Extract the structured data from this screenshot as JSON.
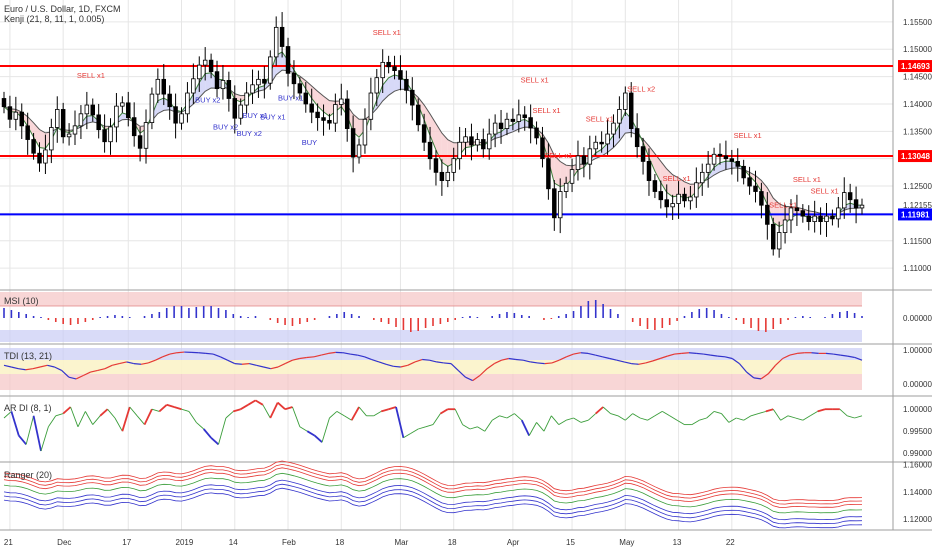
{
  "header": {
    "title": "Euro / U.S. Dollar, 1D, FXCM",
    "indicator": "Kenji (21, 8, 11, 1, 0.005)"
  },
  "colors": {
    "up_candle": "#ffffff",
    "down_candle": "#000000",
    "resistance": "#ff0000",
    "support": "#0000ff",
    "buy_label": "#3333cc",
    "sell_label": "#e53935",
    "grid": "#e6e6e6"
  },
  "chart_data": [
    {
      "type": "candlestick",
      "name": "price",
      "title": "Euro / U.S. Dollar, 1D, FXCM",
      "ylim": [
        1.106,
        1.159
      ],
      "y_ticks": [
        "1.15500",
        "1.15000",
        "1.14500",
        "1.14000",
        "1.13500",
        "1.13000",
        "1.12500",
        "1.12000",
        "1.11500",
        "1.11000"
      ],
      "x_ticks": [
        "21",
        "Dec",
        "17",
        "2019",
        "14",
        "Feb",
        "18",
        "Mar",
        "18",
        "Apr",
        "15",
        "May",
        "13",
        "22"
      ],
      "levels": [
        {
          "label": "1.14693",
          "value": 1.14693,
          "color": "#ff0000"
        },
        {
          "label": "1.13048",
          "value": 1.13048,
          "color": "#ff0000"
        },
        {
          "label": "1.11981",
          "value": 1.11981,
          "color": "#0000ff"
        }
      ],
      "last_value_label": "1.12155",
      "close": [
        1.1395,
        1.1372,
        1.1385,
        1.136,
        1.1335,
        1.131,
        1.1292,
        1.1316,
        1.1357,
        1.139,
        1.134,
        1.1345,
        1.136,
        1.1382,
        1.1398,
        1.138,
        1.1353,
        1.1331,
        1.1358,
        1.1396,
        1.1402,
        1.1375,
        1.1342,
        1.1319,
        1.1366,
        1.1418,
        1.1445,
        1.1418,
        1.1395,
        1.1365,
        1.1382,
        1.142,
        1.1446,
        1.1471,
        1.148,
        1.1459,
        1.1428,
        1.1443,
        1.141,
        1.1374,
        1.1398,
        1.142,
        1.1435,
        1.1445,
        1.1438,
        1.1486,
        1.154,
        1.1505,
        1.1456,
        1.1437,
        1.142,
        1.14,
        1.1385,
        1.1375,
        1.137,
        1.1365,
        1.1399,
        1.1409,
        1.1355,
        1.1303,
        1.1325,
        1.1372,
        1.142,
        1.1448,
        1.1476,
        1.1468,
        1.1461,
        1.1445,
        1.1425,
        1.1398,
        1.1362,
        1.133,
        1.13,
        1.1275,
        1.126,
        1.1275,
        1.13,
        1.133,
        1.134,
        1.1325,
        1.1335,
        1.1318,
        1.1345,
        1.1365,
        1.1355,
        1.1372,
        1.1368,
        1.138,
        1.1375,
        1.1356,
        1.1338,
        1.13,
        1.1245,
        1.1192,
        1.124,
        1.1255,
        1.128,
        1.1305,
        1.129,
        1.1318,
        1.133,
        1.1327,
        1.1345,
        1.1365,
        1.139,
        1.142,
        1.1355,
        1.1322,
        1.1295,
        1.126,
        1.124,
        1.1225,
        1.1212,
        1.1218,
        1.1235,
        1.1223,
        1.123,
        1.1256,
        1.1275,
        1.129,
        1.1308,
        1.1305,
        1.13,
        1.1295,
        1.1286,
        1.1265,
        1.125,
        1.124,
        1.1215,
        1.118,
        1.1135,
        1.1165,
        1.1188,
        1.121,
        1.1205,
        1.1195,
        1.1185,
        1.1195,
        1.1185,
        1.1195,
        1.119,
        1.121,
        1.1238,
        1.1225,
        1.121,
        1.1215
      ],
      "signals": [
        {
          "label": "SELL x1",
          "kind": "sell"
        },
        {
          "label": "BUY x2",
          "kind": "buy"
        },
        {
          "label": "BUY x2",
          "kind": "buy"
        },
        {
          "label": "BUY x1",
          "kind": "buy"
        },
        {
          "label": "BUY x2",
          "kind": "buy"
        },
        {
          "label": "BUY x1",
          "kind": "buy"
        },
        {
          "label": "BUY x1",
          "kind": "buy"
        },
        {
          "label": "BUY",
          "kind": "buy"
        },
        {
          "label": "SELL x1",
          "kind": "sell"
        },
        {
          "label": "SELL x1",
          "kind": "sell"
        },
        {
          "label": "SELL x1",
          "kind": "sell"
        },
        {
          "label": "SELL x1",
          "kind": "sell"
        },
        {
          "label": "SELL x1",
          "kind": "sell"
        },
        {
          "label": "SELL x2",
          "kind": "sell"
        },
        {
          "label": "SELL x1",
          "kind": "sell"
        },
        {
          "label": "SELL x1",
          "kind": "sell"
        },
        {
          "label": "SELL x1",
          "kind": "sell"
        },
        {
          "label": "SELL x1",
          "kind": "sell"
        },
        {
          "label": "SELL x1",
          "kind": "sell"
        }
      ]
    },
    {
      "type": "bar",
      "name": "msi",
      "title": "MSI (10)",
      "y_ticks": [
        "0.00000"
      ],
      "ylim": [
        -1,
        1
      ],
      "values": [
        0.5,
        0.4,
        0.3,
        0.2,
        0.1,
        0.05,
        -0.1,
        -0.2,
        -0.3,
        -0.35,
        -0.3,
        -0.2,
        -0.1,
        0.05,
        0.1,
        0.15,
        0.1,
        0.05,
        0.0,
        0.1,
        0.2,
        0.3,
        0.5,
        0.6,
        0.6,
        0.5,
        0.55,
        0.6,
        0.6,
        0.5,
        0.4,
        0.2,
        0.1,
        0.05,
        0.1,
        0.0,
        -0.1,
        -0.25,
        -0.35,
        -0.4,
        -0.3,
        -0.2,
        -0.1,
        0.0,
        0.1,
        0.2,
        0.3,
        0.2,
        0.1,
        0.0,
        -0.1,
        -0.2,
        -0.3,
        -0.45,
        -0.6,
        -0.7,
        -0.65,
        -0.5,
        -0.4,
        -0.3,
        -0.2,
        -0.1,
        0.05,
        0.1,
        0.05,
        0.0,
        0.1,
        0.2,
        0.3,
        0.25,
        0.15,
        0.1,
        0.0,
        -0.1,
        -0.05,
        0.1,
        0.2,
        0.35,
        0.6,
        0.85,
        0.9,
        0.7,
        0.45,
        0.2,
        0.0,
        -0.2,
        -0.4,
        -0.55,
        -0.6,
        -0.5,
        -0.35,
        -0.15,
        0.1,
        0.3,
        0.45,
        0.5,
        0.4,
        0.2,
        0.05,
        -0.1,
        -0.3,
        -0.5,
        -0.65,
        -0.7,
        -0.55,
        -0.3,
        -0.1,
        0.05,
        0.1,
        0.05,
        0.0,
        0.05,
        0.2,
        0.3,
        0.35,
        0.25,
        0.1
      ],
      "color_positive": "#3333cc",
      "color_negative": "#e53935"
    },
    {
      "type": "line",
      "name": "tdi",
      "title": "TDI (13, 21)",
      "y_ticks": [
        "1.00000",
        "0.00000"
      ],
      "ylim": [
        -0.1,
        1.1
      ],
      "values": [
        0.55,
        0.5,
        0.45,
        0.42,
        0.45,
        0.5,
        0.55,
        0.5,
        0.4,
        0.2,
        0.15,
        0.25,
        0.35,
        0.4,
        0.45,
        0.55,
        0.6,
        0.65,
        0.6,
        0.58,
        0.62,
        0.7,
        0.8,
        0.88,
        0.92,
        0.94,
        0.93,
        0.92,
        0.9,
        0.88,
        0.8,
        0.7,
        0.6,
        0.58,
        0.6,
        0.55,
        0.5,
        0.45,
        0.5,
        0.6,
        0.7,
        0.75,
        0.78,
        0.8,
        0.85,
        0.9,
        0.93,
        0.92,
        0.88,
        0.85,
        0.8,
        0.72,
        0.65,
        0.58,
        0.52,
        0.5,
        0.55,
        0.65,
        0.72,
        0.7,
        0.65,
        0.62,
        0.6,
        0.4,
        0.2,
        0.1,
        0.25,
        0.45,
        0.6,
        0.7,
        0.75,
        0.72,
        0.7,
        0.65,
        0.62,
        0.6,
        0.62,
        0.7,
        0.8,
        0.88,
        0.92,
        0.9,
        0.85,
        0.8,
        0.75,
        0.7,
        0.65,
        0.6,
        0.58,
        0.62,
        0.68,
        0.75,
        0.82,
        0.88,
        0.9,
        0.92,
        0.9,
        0.88,
        0.85,
        0.82,
        0.8,
        0.75,
        0.6,
        0.35,
        0.18,
        0.15,
        0.3,
        0.55,
        0.75,
        0.85,
        0.9,
        0.92,
        0.92,
        0.9,
        0.9,
        0.88,
        0.85,
        0.82,
        0.78,
        0.7
      ]
    },
    {
      "type": "line",
      "name": "ar_di",
      "title": "AR DI (8, 1)",
      "y_ticks": [
        "1.00000",
        "0.99500",
        "0.99000"
      ],
      "ylim": [
        0.988,
        1.003
      ],
      "values": [
        0.998,
        0.9995,
        0.994,
        0.992,
        0.9985,
        0.9905,
        0.996,
        0.9985,
        0.999,
        1.0005,
        0.996,
        0.9995,
        0.9965,
        0.9985,
        1.0,
        0.998,
        0.995,
        1.0005,
        0.9985,
        0.9965,
        1.0,
        0.9995,
        1.001,
        1.0005,
        1.0,
        0.9995,
        0.997,
        0.9955,
        0.9935,
        0.992,
        0.998,
        0.9995,
        1.0,
        1.001,
        1.002,
        1.001,
        0.998,
        1.0015,
        1.0,
        1.0005,
        0.996,
        0.995,
        0.994,
        0.9925,
        0.998,
        0.9995,
        0.9985,
        0.9975,
        1.0005,
        0.9985,
        0.9985,
        0.9995,
        1.0,
        1.0005,
        0.9935,
        0.9945,
        0.9955,
        0.996,
        0.9965,
        0.999,
        1.0,
        1.0,
        0.9965,
        0.9955,
        0.996,
        0.995,
        0.9975,
        0.9985,
        0.998,
        0.999,
        0.9975,
        0.994,
        0.997,
        0.995,
        0.9985,
        0.9965,
        0.9975,
        0.998,
        0.997,
        0.9975,
        0.999,
        1.0005,
        0.999,
        0.9985,
        0.9975,
        0.999,
        0.998,
        0.9975,
        0.9985,
        0.9995,
        0.9985,
        0.9975,
        0.9965,
        0.9965,
        0.9975,
        0.998,
        0.9995,
        0.999,
        0.997,
        0.998,
        0.9975,
        0.9985,
        0.999,
        0.9995,
        1.0,
        0.9975,
        0.9985,
        0.998,
        0.9975,
        0.9985,
        0.9995,
        1.0,
        1.0,
        1.0,
        0.9985,
        0.998,
        0.9985
      ]
    },
    {
      "type": "line",
      "name": "ranger",
      "title": "Ranger (20)",
      "y_ticks": [
        "1.16000",
        "1.14000",
        "1.12000"
      ],
      "ylim": [
        1.112,
        1.162
      ]
    }
  ]
}
